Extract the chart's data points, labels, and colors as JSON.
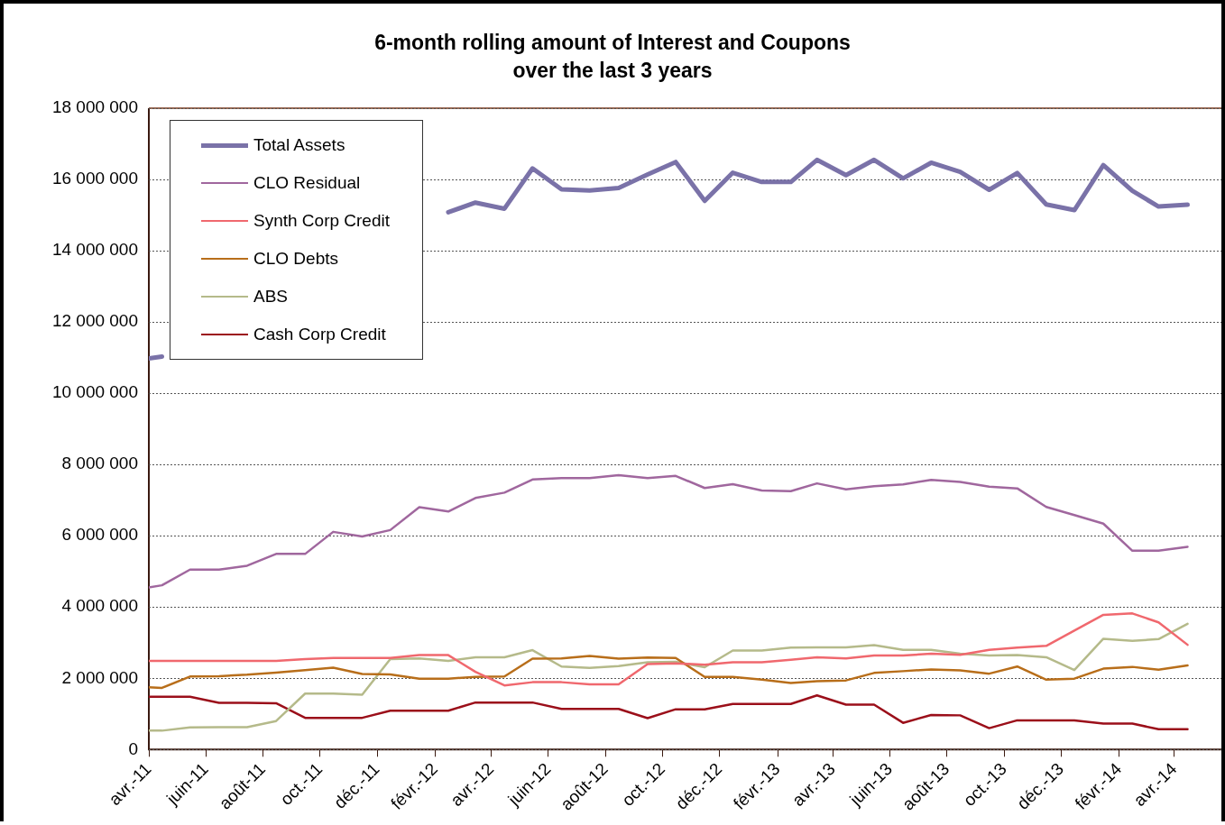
{
  "chart_data": {
    "type": "line",
    "title": "6-month rolling amount of Interest and Coupons\nover the last 3 years",
    "x": [
      "2011-04-01",
      "2011-04-15",
      "2011-05-15",
      "2011-06-15",
      "2011-07-15",
      "2011-08-15",
      "2011-09-15",
      "2011-10-15",
      "2011-11-15",
      "2011-12-15",
      "2012-01-15",
      "2012-02-15",
      "2012-03-15",
      "2012-04-15",
      "2012-05-15",
      "2012-06-15",
      "2012-07-15",
      "2012-08-15",
      "2012-09-15",
      "2012-10-15",
      "2012-11-15",
      "2012-12-15",
      "2013-01-15",
      "2013-02-15",
      "2013-03-15",
      "2013-04-15",
      "2013-05-15",
      "2013-06-15",
      "2013-07-15",
      "2013-08-15",
      "2013-09-15",
      "2013-10-15",
      "2013-11-15",
      "2013-12-15",
      "2014-01-15",
      "2014-02-15",
      "2014-03-15",
      "2014-04-15"
    ],
    "series": [
      {
        "name": "Total Assets",
        "color": "#7a72a8",
        "values": [
          10980000,
          11030000,
          null,
          null,
          null,
          null,
          null,
          null,
          null,
          null,
          null,
          15080000,
          15350000,
          15180000,
          16310000,
          15720000,
          15690000,
          15760000,
          16140000,
          16490000,
          15400000,
          16190000,
          15930000,
          15930000,
          16550000,
          16120000,
          16550000,
          16030000,
          16470000,
          16210000,
          15710000,
          16180000,
          15300000,
          15140000,
          16400000,
          15680000,
          15240000,
          15290000
        ]
      },
      {
        "name": "CLO Residual",
        "color": "#a0679e",
        "values": [
          4550000,
          4610000,
          5050000,
          5050000,
          5160000,
          5490000,
          5490000,
          6110000,
          5980000,
          6160000,
          6800000,
          6680000,
          7060000,
          7210000,
          7580000,
          7620000,
          7620000,
          7700000,
          7620000,
          7680000,
          7340000,
          7450000,
          7270000,
          7250000,
          7470000,
          7300000,
          7390000,
          7440000,
          7570000,
          7510000,
          7380000,
          7330000,
          6810000,
          6580000,
          6340000,
          5580000,
          5580000,
          5690000
        ]
      },
      {
        "name": "Synth Corp Credit",
        "color": "#f0686e",
        "values": [
          2490000,
          2490000,
          2490000,
          2490000,
          2490000,
          2490000,
          2540000,
          2570000,
          2570000,
          2570000,
          2650000,
          2650000,
          2180000,
          1800000,
          1890000,
          1890000,
          1830000,
          1830000,
          2400000,
          2420000,
          2380000,
          2450000,
          2450000,
          2520000,
          2590000,
          2560000,
          2640000,
          2640000,
          2690000,
          2660000,
          2800000,
          2860000,
          2910000,
          3340000,
          3780000,
          3820000,
          3570000,
          2940000
        ]
      },
      {
        "name": "CLO Debts",
        "color": "#b86e1a",
        "values": [
          1750000,
          1730000,
          2050000,
          2060000,
          2100000,
          2160000,
          2230000,
          2300000,
          2120000,
          2110000,
          1990000,
          1990000,
          2040000,
          2050000,
          2550000,
          2560000,
          2630000,
          2550000,
          2580000,
          2570000,
          2040000,
          2040000,
          1960000,
          1870000,
          1920000,
          1940000,
          2150000,
          2200000,
          2250000,
          2220000,
          2130000,
          2330000,
          1960000,
          1990000,
          2270000,
          2320000,
          2240000,
          2360000
        ]
      },
      {
        "name": "ABS",
        "color": "#b5ba8a",
        "values": [
          530000,
          530000,
          620000,
          630000,
          630000,
          800000,
          1570000,
          1570000,
          1540000,
          2540000,
          2560000,
          2490000,
          2590000,
          2590000,
          2790000,
          2330000,
          2290000,
          2340000,
          2450000,
          2460000,
          2310000,
          2780000,
          2780000,
          2860000,
          2870000,
          2870000,
          2930000,
          2800000,
          2800000,
          2690000,
          2640000,
          2650000,
          2590000,
          2230000,
          3110000,
          3050000,
          3100000,
          3530000
        ]
      },
      {
        "name": "Cash Corp Credit",
        "color": "#9b0f1a",
        "values": [
          1480000,
          1480000,
          1480000,
          1310000,
          1310000,
          1300000,
          890000,
          890000,
          890000,
          1090000,
          1090000,
          1090000,
          1320000,
          1320000,
          1320000,
          1140000,
          1140000,
          1140000,
          880000,
          1130000,
          1130000,
          1280000,
          1280000,
          1280000,
          1520000,
          1260000,
          1260000,
          750000,
          970000,
          960000,
          600000,
          820000,
          820000,
          820000,
          730000,
          730000,
          570000,
          570000
        ]
      }
    ],
    "xlim": [
      "2011-04-01",
      "2014-05-25"
    ],
    "xticks": [
      {
        "value": "2011-04-01",
        "label": "avr.-11"
      },
      {
        "value": "2011-06-01",
        "label": "juin-11"
      },
      {
        "value": "2011-08-01",
        "label": "août-11"
      },
      {
        "value": "2011-10-01",
        "label": "oct.-11"
      },
      {
        "value": "2011-12-01",
        "label": "déc.-11"
      },
      {
        "value": "2012-02-01",
        "label": "févr.-12"
      },
      {
        "value": "2012-04-01",
        "label": "avr.-12"
      },
      {
        "value": "2012-06-01",
        "label": "juin-12"
      },
      {
        "value": "2012-08-01",
        "label": "août-12"
      },
      {
        "value": "2012-10-01",
        "label": "oct.-12"
      },
      {
        "value": "2012-12-01",
        "label": "déc.-12"
      },
      {
        "value": "2013-02-01",
        "label": "févr.-13"
      },
      {
        "value": "2013-04-01",
        "label": "avr.-13"
      },
      {
        "value": "2013-06-01",
        "label": "juin-13"
      },
      {
        "value": "2013-08-01",
        "label": "août-13"
      },
      {
        "value": "2013-10-01",
        "label": "oct.-13"
      },
      {
        "value": "2013-12-01",
        "label": "déc.-13"
      },
      {
        "value": "2014-02-01",
        "label": "févr.-14"
      },
      {
        "value": "2014-04-01",
        "label": "avr.-14"
      }
    ],
    "ylim": [
      0,
      18000000
    ],
    "yticks": [
      {
        "value": 0,
        "label": "0"
      },
      {
        "value": 2000000,
        "label": "2 000 000"
      },
      {
        "value": 4000000,
        "label": "4 000 000"
      },
      {
        "value": 6000000,
        "label": "6 000 000"
      },
      {
        "value": 8000000,
        "label": "8 000 000"
      },
      {
        "value": 10000000,
        "label": "10 000 000"
      },
      {
        "value": 12000000,
        "label": "12 000 000"
      },
      {
        "value": 14000000,
        "label": "14 000 000"
      },
      {
        "value": 16000000,
        "label": "16 000 000"
      },
      {
        "value": 18000000,
        "label": "18 000 000"
      }
    ],
    "grid": "y",
    "legend": "top left",
    "marker": "none",
    "line_style": "solid"
  }
}
